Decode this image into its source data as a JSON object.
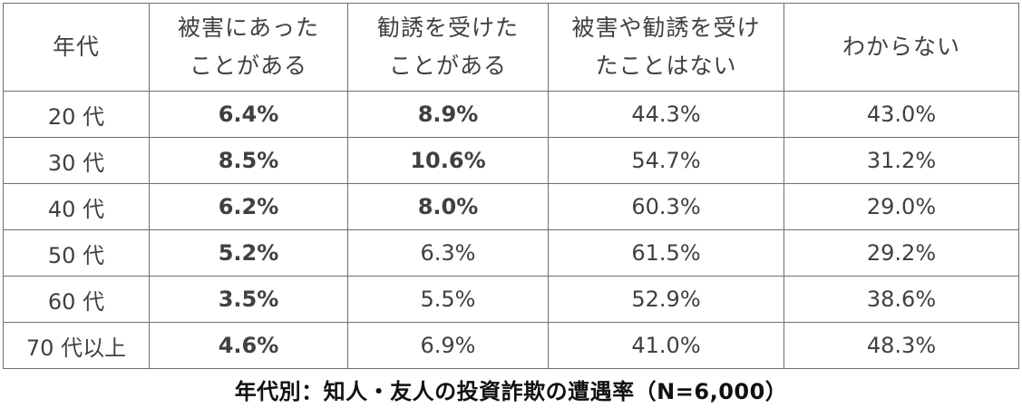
{
  "chart_data": {
    "type": "table",
    "title": "年代別：知人・友人の投資詐欺の遭遇率（N=6,000）",
    "header": {
      "age": "年代",
      "columns": [
        {
          "line1": "被害にあった",
          "line2": "ことがある"
        },
        {
          "line1": "勧誘を受けた",
          "line2": "ことがある"
        },
        {
          "line1": "被害や勧誘を受け",
          "line2": "たことはない"
        },
        {
          "line1": "わからない",
          "line2": ""
        }
      ]
    },
    "rows": [
      {
        "age": "20 代",
        "cells": [
          {
            "text": "6.4%",
            "value": 6.4,
            "style": "red"
          },
          {
            "text": "8.9%",
            "value": 8.9,
            "style": "red"
          },
          {
            "text": "44.3%",
            "value": 44.3,
            "style": "plain"
          },
          {
            "text": "43.0%",
            "value": 43.0,
            "style": "plain"
          }
        ]
      },
      {
        "age": "30 代",
        "cells": [
          {
            "text": "8.5%",
            "value": 8.5,
            "style": "red"
          },
          {
            "text": "10.6%",
            "value": 10.6,
            "style": "red"
          },
          {
            "text": "54.7%",
            "value": 54.7,
            "style": "plain"
          },
          {
            "text": "31.2%",
            "value": 31.2,
            "style": "plain"
          }
        ]
      },
      {
        "age": "40 代",
        "cells": [
          {
            "text": "6.2%",
            "value": 6.2,
            "style": "red"
          },
          {
            "text": "8.0%",
            "value": 8.0,
            "style": "red"
          },
          {
            "text": "60.3%",
            "value": 60.3,
            "style": "plain"
          },
          {
            "text": "29.0%",
            "value": 29.0,
            "style": "plain"
          }
        ]
      },
      {
        "age": "50 代",
        "cells": [
          {
            "text": "5.2%",
            "value": 5.2,
            "style": "blue"
          },
          {
            "text": "6.3%",
            "value": 6.3,
            "style": "plain"
          },
          {
            "text": "61.5%",
            "value": 61.5,
            "style": "plain"
          },
          {
            "text": "29.2%",
            "value": 29.2,
            "style": "plain"
          }
        ]
      },
      {
        "age": "60 代",
        "cells": [
          {
            "text": "3.5%",
            "value": 3.5,
            "style": "blue"
          },
          {
            "text": "5.5%",
            "value": 5.5,
            "style": "plain"
          },
          {
            "text": "52.9%",
            "value": 52.9,
            "style": "plain"
          },
          {
            "text": "38.6%",
            "value": 38.6,
            "style": "plain"
          }
        ]
      },
      {
        "age": "70 代以上",
        "cells": [
          {
            "text": "4.6%",
            "value": 4.6,
            "style": "blue"
          },
          {
            "text": "6.9%",
            "value": 6.9,
            "style": "plain"
          },
          {
            "text": "41.0%",
            "value": 41.0,
            "style": "plain"
          },
          {
            "text": "48.3%",
            "value": 48.3,
            "style": "plain"
          }
        ]
      }
    ]
  },
  "colors": {
    "highlight_red": "#d42a2a",
    "highlight_blue": "#4f76b4",
    "text": "#404040",
    "border": "#6f6f6f"
  }
}
